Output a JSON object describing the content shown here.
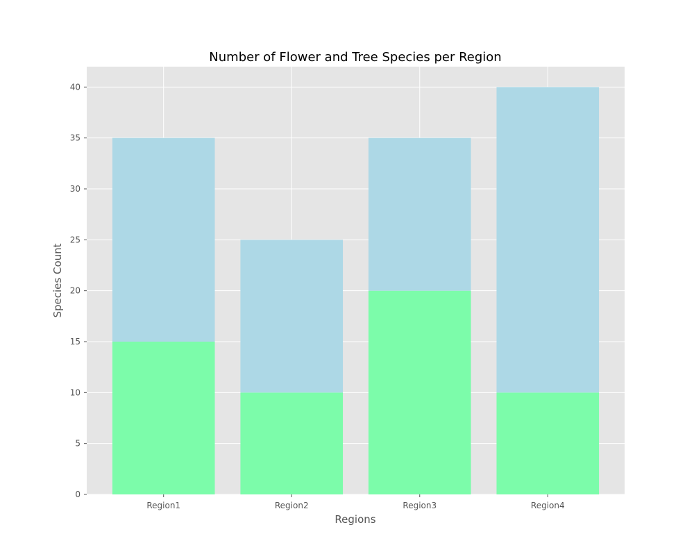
{
  "chart_data": {
    "type": "bar",
    "stacked": true,
    "title": "Number of Flower and Tree Species per Region",
    "xlabel": "Regions",
    "ylabel": "Species Count",
    "categories": [
      "Region1",
      "Region2",
      "Region3",
      "Region4"
    ],
    "series": [
      {
        "values": [
          15,
          10,
          20,
          10
        ],
        "color": "#7cfcaa"
      },
      {
        "values": [
          20,
          15,
          15,
          30
        ],
        "color": "#add8e6"
      }
    ],
    "ylim": [
      0,
      42
    ],
    "yticks": [
      0,
      5,
      10,
      15,
      20,
      25,
      30,
      35,
      40
    ],
    "grid": true,
    "legend": "none",
    "colors": {
      "plot_background": "#e5e5e5",
      "grid": "#ffffff",
      "tick_text": "#555555"
    }
  }
}
